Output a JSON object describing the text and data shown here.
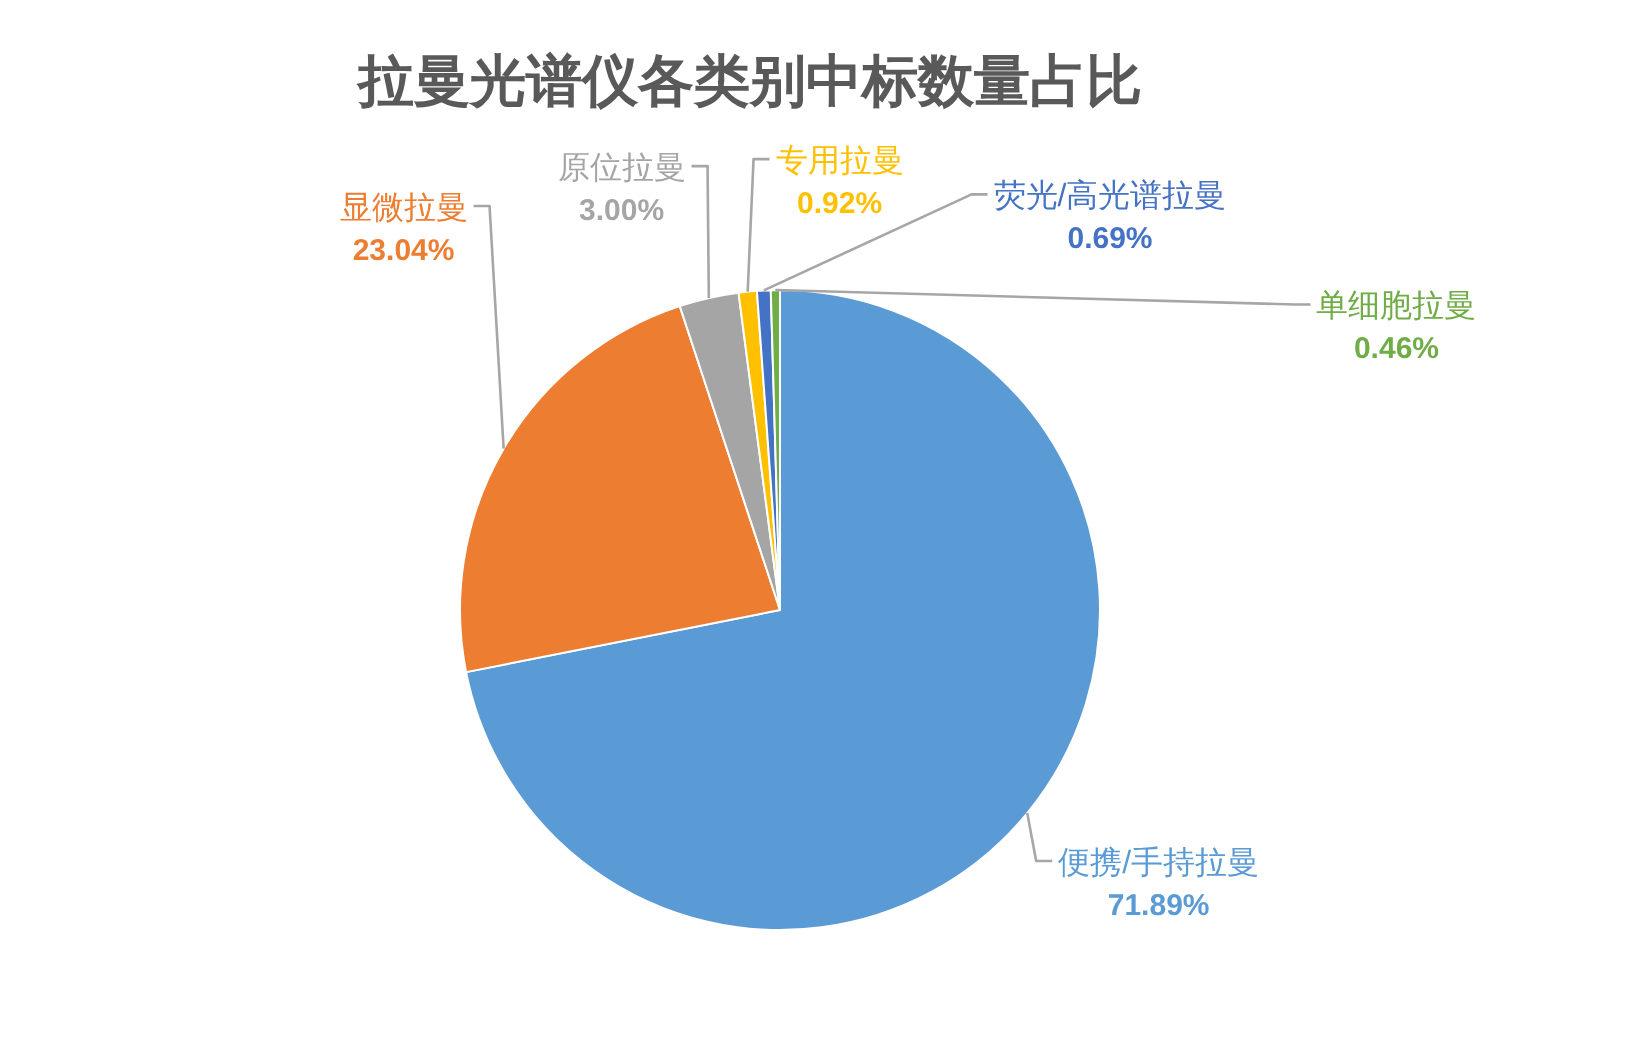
{
  "chart_data": {
    "type": "pie",
    "title": "拉曼光谱仪各类别中标数量占比",
    "categories": [
      "便携/手持拉曼",
      "显微拉曼",
      "原位拉曼",
      "专用拉曼",
      "荧光/高光谱拉曼",
      "单细胞拉曼"
    ],
    "values": [
      71.89,
      23.04,
      3.0,
      0.92,
      0.69,
      0.46
    ],
    "value_labels": [
      "71.89%",
      "23.04%",
      "3.00%",
      "0.92%",
      "0.69%",
      "0.46%"
    ],
    "colors": [
      "#5b9bd5",
      "#ed7d31",
      "#a5a5a5",
      "#ffc000",
      "#4472c4",
      "#70ad47"
    ]
  }
}
